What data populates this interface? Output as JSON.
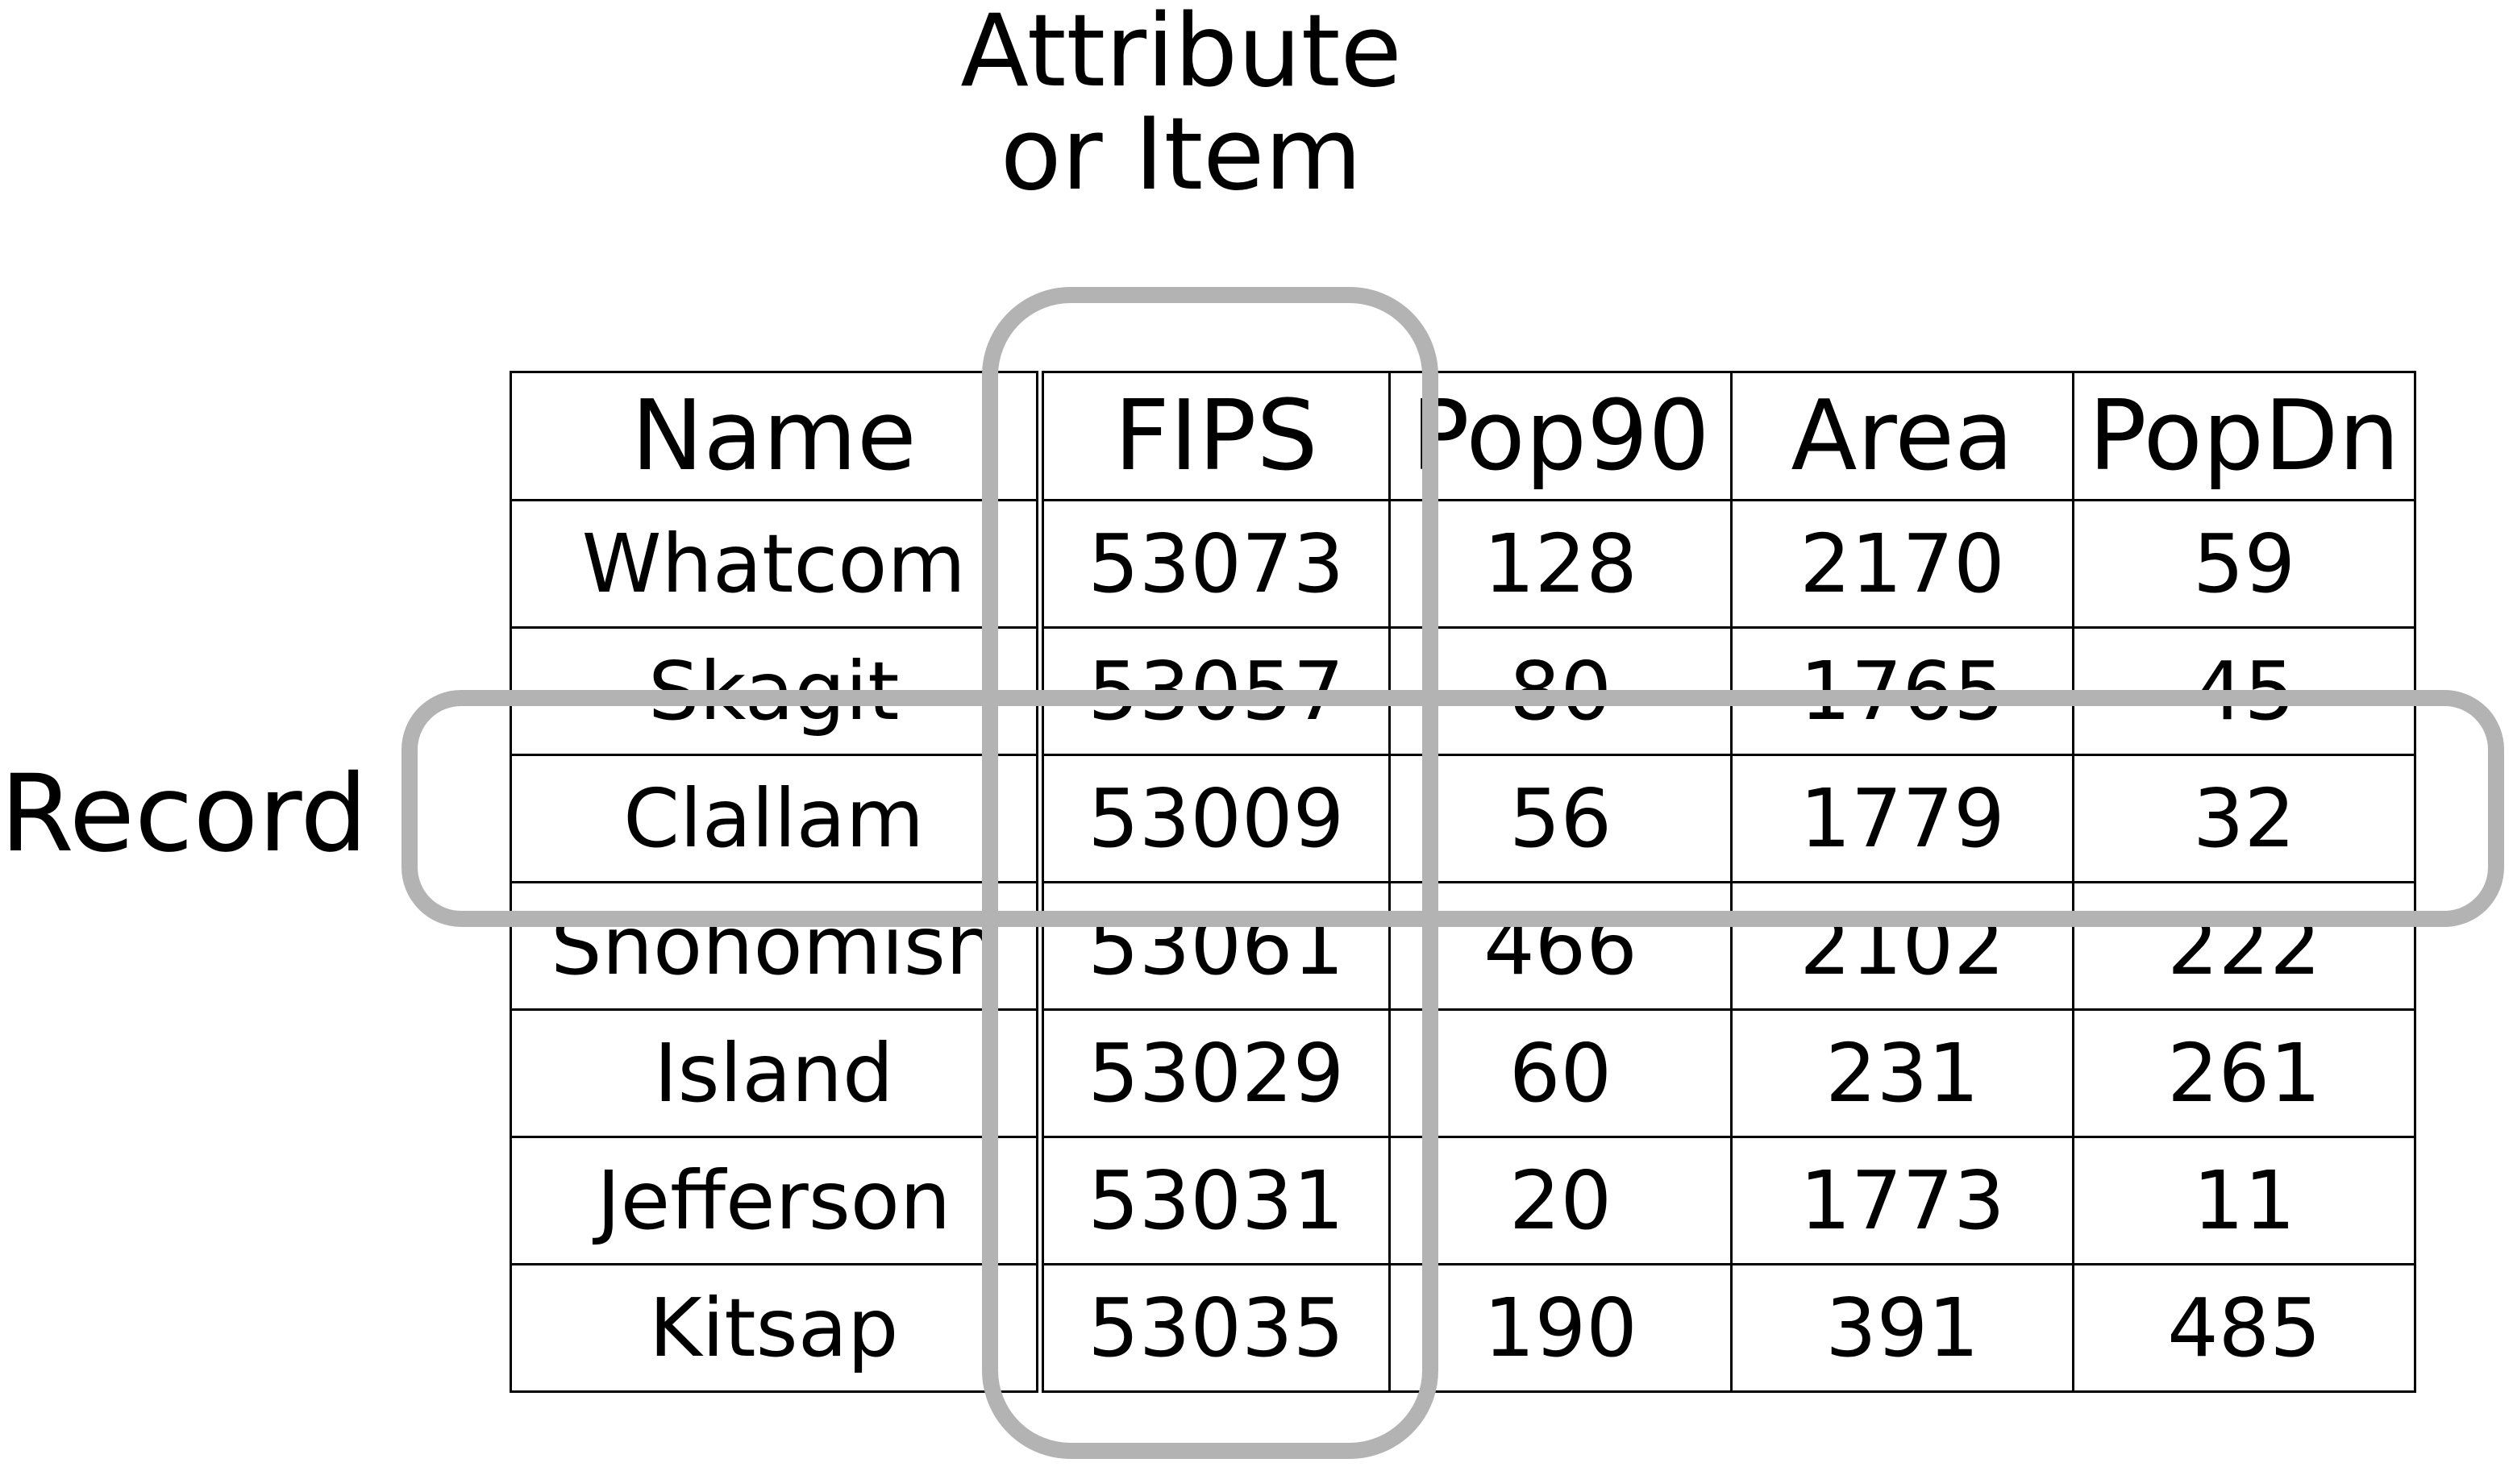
{
  "attribute_label": {
    "line1": "Attribute",
    "line2": "or Item"
  },
  "record_label": "Record",
  "table": {
    "headers": [
      "Name",
      "FIPS",
      "Pop90",
      "Area",
      "PopDn"
    ],
    "rows": [
      [
        "Whatcom",
        "53073",
        "128",
        "2170",
        "59"
      ],
      [
        "Skagit",
        "53057",
        "80",
        "1765",
        "45"
      ],
      [
        "Clallam",
        "53009",
        "56",
        "1779",
        "32"
      ],
      [
        "Snohomish",
        "53061",
        "466",
        "2102",
        "222"
      ],
      [
        "Island",
        "53029",
        "60",
        "231",
        "261"
      ],
      [
        "Jefferson",
        "53031",
        "20",
        "1773",
        "11"
      ],
      [
        "Kitsap",
        "53035",
        "190",
        "391",
        "485"
      ]
    ]
  },
  "colors": {
    "highlight_stroke": "#b3b3b3",
    "grid": "#000000",
    "text": "#000000"
  }
}
